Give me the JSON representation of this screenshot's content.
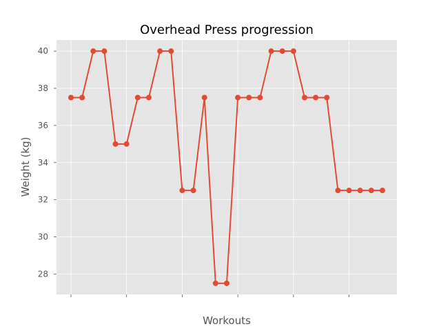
{
  "chart_data": {
    "type": "line",
    "title": "Overhead Press progression",
    "xlabel": "Workouts",
    "ylabel": "Weight (kg)",
    "ylim": [
      26.9,
      40.6
    ],
    "xlim": [
      -1.3,
      29.3
    ],
    "yticks": [
      28,
      30,
      32,
      34,
      36,
      38,
      40
    ],
    "xticks": [
      0,
      5,
      10,
      15,
      20,
      25
    ],
    "xtick_labels_shown": false,
    "grid": true,
    "colors": {
      "background": "#e5e5e5",
      "grid": "#ffffff",
      "line": "#e24a33",
      "tick": "#555555"
    },
    "series": [
      {
        "x": [
          0,
          1,
          2,
          3,
          4,
          5,
          6,
          7,
          8,
          9,
          10,
          11,
          12,
          13,
          14,
          15,
          16,
          17,
          18,
          19,
          20,
          21,
          22,
          23,
          24,
          25,
          26,
          27,
          28
        ],
        "values": [
          37.5,
          37.5,
          40,
          40,
          35,
          35,
          37.5,
          37.5,
          40,
          40,
          32.5,
          32.5,
          37.5,
          27.5,
          27.5,
          37.5,
          37.5,
          37.5,
          40,
          40,
          40,
          37.5,
          37.5,
          37.5,
          32.5,
          32.5,
          32.5,
          32.5,
          32.5
        ]
      }
    ]
  }
}
